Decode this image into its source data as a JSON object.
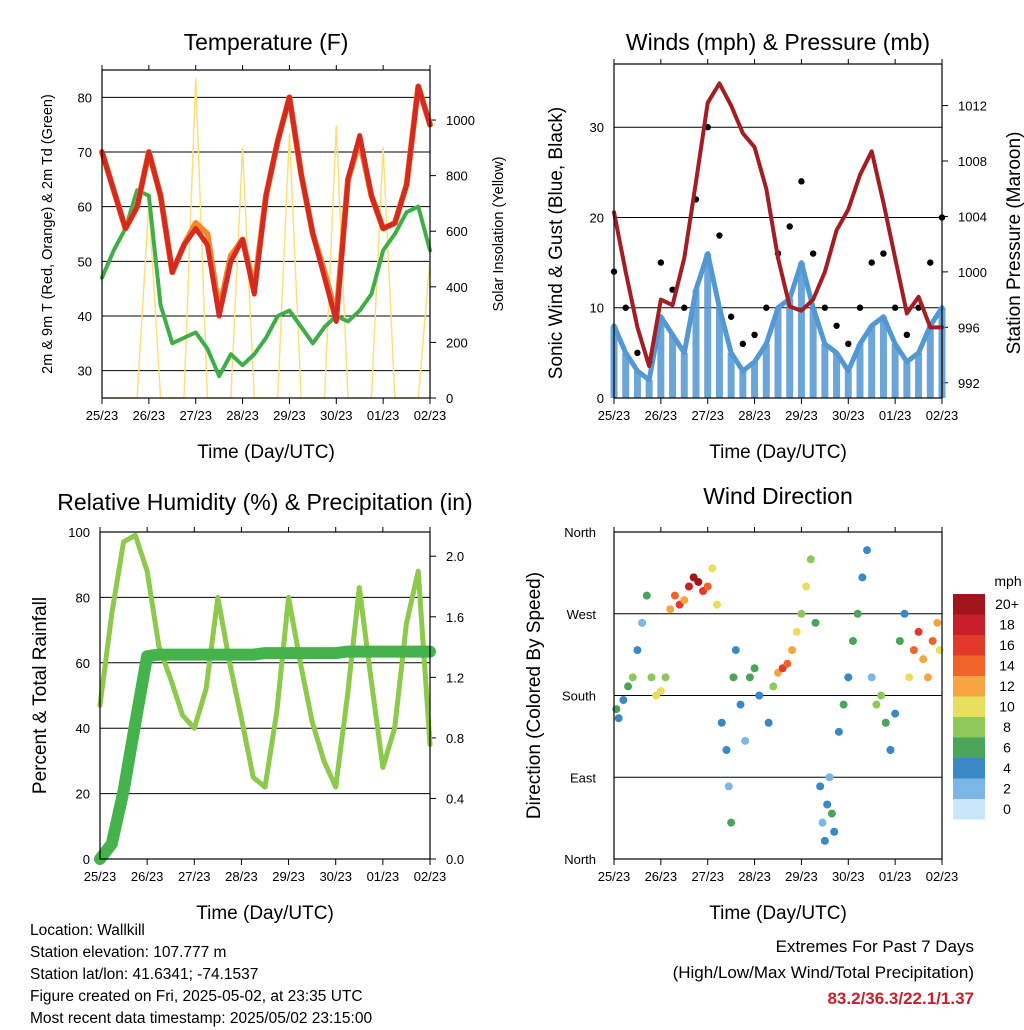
{
  "x_ticks": [
    "25/23",
    "26/23",
    "27/23",
    "28/23",
    "29/23",
    "30/23",
    "01/23",
    "02/23"
  ],
  "colors": {
    "temp2m": "#d42a22",
    "temp9m": "#f5862a",
    "dewpoint": "#3fae48",
    "solar": "#fbe07a",
    "wind": "#5397d3",
    "gust": "#000000",
    "pressure": "#a31e23",
    "rh": "#8dc94b",
    "precip": "#45b34c",
    "extremes": "#c8202a"
  },
  "chart_data": [
    {
      "type": "line",
      "title": "Temperature (F)",
      "xlabel": "Time (Day/UTC)",
      "ylabel": "2m & 9m T (Red, Orange) & 2m Td (Green)",
      "y2label": "Solar Insolation (Yellow)",
      "ylim": [
        25,
        85
      ],
      "y2lim": [
        0,
        1180
      ],
      "yticks": [
        30,
        40,
        50,
        60,
        70,
        80
      ],
      "y2ticks": [
        0,
        200,
        400,
        600,
        800,
        1000
      ],
      "grid": true,
      "x": [
        0,
        0.25,
        0.5,
        0.75,
        1.0,
        1.25,
        1.5,
        1.75,
        2.0,
        2.25,
        2.5,
        2.75,
        3.0,
        3.25,
        3.5,
        3.75,
        4.0,
        4.25,
        4.5,
        4.75,
        5.0,
        5.25,
        5.5,
        5.75,
        6.0,
        6.25,
        6.5,
        6.75,
        7.0
      ],
      "series": [
        {
          "name": "2m T",
          "values": [
            70,
            63,
            56,
            60,
            70,
            62,
            48,
            53,
            56,
            53,
            40,
            50,
            54,
            44,
            62,
            72,
            80,
            66,
            55,
            47,
            39,
            65,
            73,
            62,
            56,
            57,
            64,
            82,
            75
          ]
        },
        {
          "name": "9m T",
          "values": [
            70,
            63,
            56,
            60,
            70,
            62,
            48,
            53,
            57,
            55,
            41,
            51,
            54,
            45,
            62,
            72,
            80,
            66,
            55,
            48,
            40,
            65,
            72,
            62,
            56,
            57,
            64,
            82,
            75
          ]
        },
        {
          "name": "2m Td",
          "values": [
            47,
            52,
            56,
            63,
            62,
            42,
            35,
            36,
            37,
            34,
            29,
            33,
            31,
            33,
            36,
            40,
            41,
            38,
            35,
            38,
            40,
            39,
            41,
            44,
            52,
            55,
            59,
            60,
            52
          ]
        },
        {
          "name": "Solar",
          "values": [
            0,
            0,
            0,
            0,
            700,
            0,
            0,
            0,
            1150,
            0,
            0,
            0,
            900,
            0,
            0,
            0,
            950,
            0,
            0,
            0,
            980,
            0,
            0,
            0,
            900,
            0,
            0,
            0,
            500
          ]
        }
      ]
    },
    {
      "type": "line",
      "title": "Winds (mph) & Pressure (mb)",
      "xlabel": "Time (Day/UTC)",
      "ylabel": "Sonic Wind & Gust (Blue, Black)",
      "y2label": "Station Pressure (Maroon)",
      "ylim": [
        0,
        37
      ],
      "y2lim": [
        990.9,
        1015.0
      ],
      "yticks": [
        0,
        10,
        20,
        30
      ],
      "y2ticks": [
        992,
        996,
        1000,
        1004,
        1008,
        1012
      ],
      "grid": true,
      "x": [
        0,
        0.25,
        0.5,
        0.75,
        1.0,
        1.25,
        1.5,
        1.75,
        2.0,
        2.25,
        2.5,
        2.75,
        3.0,
        3.25,
        3.5,
        3.75,
        4.0,
        4.25,
        4.5,
        4.75,
        5.0,
        5.25,
        5.5,
        5.75,
        6.0,
        6.25,
        6.5,
        6.75,
        7.0
      ],
      "series": [
        {
          "name": "Wind",
          "values": [
            8,
            5,
            3,
            2,
            9,
            7,
            5,
            12,
            16,
            10,
            5,
            3,
            4,
            6,
            10,
            11,
            15,
            10,
            6,
            5,
            3,
            6,
            8,
            9,
            6,
            4,
            5,
            8,
            10
          ]
        },
        {
          "name": "Gust",
          "values": [
            14,
            10,
            5,
            4,
            15,
            12,
            10,
            22,
            30,
            18,
            9,
            6,
            7,
            10,
            16,
            19,
            24,
            16,
            10,
            8,
            6,
            10,
            15,
            16,
            10,
            7,
            10,
            15,
            20
          ]
        },
        {
          "name": "Pressure",
          "values": [
            1004.3,
            1000,
            996,
            993.2,
            998,
            997.6,
            1001,
            1006.5,
            1012.2,
            1013.6,
            1012,
            1010,
            1009,
            1006,
            1001,
            997.5,
            997.2,
            998,
            1000,
            1003,
            1004.5,
            1007,
            1008.7,
            1005,
            1001,
            997,
            998.2,
            996,
            996
          ]
        }
      ]
    },
    {
      "type": "line",
      "title": "Relative Humidity (%) & Precipitation (in)",
      "xlabel": "Time (Day/UTC)",
      "ylabel": "Percent & Total Rainfall",
      "ylim": [
        0,
        100
      ],
      "y2lim": [
        0,
        2.16
      ],
      "yticks": [
        0,
        20,
        40,
        60,
        80,
        100
      ],
      "y2ticks": [
        0.0,
        0.4,
        0.8,
        1.2,
        1.6,
        2.0
      ],
      "grid": true,
      "x": [
        0,
        0.25,
        0.5,
        0.75,
        1.0,
        1.25,
        1.5,
        1.75,
        2.0,
        2.25,
        2.5,
        2.75,
        3.0,
        3.25,
        3.5,
        3.75,
        4.0,
        4.25,
        4.5,
        4.75,
        5.0,
        5.25,
        5.5,
        5.75,
        6.0,
        6.25,
        6.5,
        6.75,
        7.0
      ],
      "series": [
        {
          "name": "RH",
          "values": [
            47,
            75,
            97,
            99,
            88,
            65,
            55,
            44,
            40,
            52,
            80,
            60,
            43,
            25,
            22,
            45,
            80,
            60,
            42,
            30,
            22,
            50,
            83,
            55,
            28,
            40,
            72,
            88,
            35
          ]
        },
        {
          "name": "Precip",
          "values": [
            0,
            0.1,
            0.45,
            0.9,
            1.34,
            1.35,
            1.35,
            1.35,
            1.35,
            1.35,
            1.35,
            1.35,
            1.35,
            1.35,
            1.36,
            1.36,
            1.36,
            1.36,
            1.36,
            1.36,
            1.36,
            1.37,
            1.37,
            1.37,
            1.37,
            1.37,
            1.37,
            1.37,
            1.37
          ]
        }
      ]
    },
    {
      "type": "scatter",
      "title": "Wind Direction",
      "xlabel": "Time (Day/UTC)",
      "ylabel": "Direction (Colored By Speed)",
      "yticks": [
        "North",
        "East",
        "South",
        "West",
        "North"
      ],
      "ylim": [
        0,
        360
      ],
      "legend_title": "mph",
      "legend_labels": [
        "20+",
        "18",
        "16",
        "14",
        "12",
        "10",
        "8",
        "6",
        "4",
        "2",
        "0"
      ],
      "legend_colors": [
        "#a0141c",
        "#c8202a",
        "#e13a2a",
        "#f0642c",
        "#f7a443",
        "#e8df5e",
        "#8ec85a",
        "#4aa55a",
        "#3a88c6",
        "#7ab7e6",
        "#c8e8fa"
      ],
      "points": [
        [
          0.05,
          165,
          6
        ],
        [
          0.1,
          155,
          4
        ],
        [
          0.2,
          175,
          3
        ],
        [
          0.3,
          190,
          5
        ],
        [
          0.4,
          200,
          8
        ],
        [
          0.5,
          230,
          4
        ],
        [
          0.6,
          260,
          2
        ],
        [
          0.7,
          290,
          5
        ],
        [
          0.8,
          200,
          7
        ],
        [
          0.9,
          180,
          9
        ],
        [
          1.0,
          185,
          10
        ],
        [
          1.1,
          200,
          8
        ],
        [
          1.2,
          275,
          11
        ],
        [
          1.3,
          290,
          13
        ],
        [
          1.4,
          280,
          15
        ],
        [
          1.5,
          285,
          12
        ],
        [
          1.6,
          300,
          17
        ],
        [
          1.7,
          310,
          19
        ],
        [
          1.8,
          305,
          20
        ],
        [
          1.9,
          295,
          16
        ],
        [
          2.0,
          300,
          14
        ],
        [
          2.1,
          320,
          10
        ],
        [
          2.2,
          280,
          9
        ],
        [
          2.3,
          150,
          3
        ],
        [
          2.4,
          120,
          4
        ],
        [
          2.45,
          80,
          2
        ],
        [
          2.5,
          40,
          6
        ],
        [
          2.55,
          200,
          5
        ],
        [
          2.6,
          230,
          3
        ],
        [
          2.7,
          170,
          4
        ],
        [
          2.8,
          130,
          2
        ],
        [
          2.9,
          200,
          5
        ],
        [
          3.0,
          210,
          6
        ],
        [
          3.1,
          180,
          4
        ],
        [
          3.3,
          150,
          3
        ],
        [
          3.4,
          190,
          7
        ],
        [
          3.5,
          205,
          12
        ],
        [
          3.6,
          210,
          15
        ],
        [
          3.7,
          215,
          14
        ],
        [
          3.8,
          230,
          12
        ],
        [
          3.9,
          250,
          9
        ],
        [
          4.0,
          270,
          8
        ],
        [
          4.1,
          300,
          10
        ],
        [
          4.2,
          330,
          7
        ],
        [
          4.3,
          260,
          5
        ],
        [
          4.4,
          80,
          3
        ],
        [
          4.45,
          40,
          2
        ],
        [
          4.5,
          20,
          4
        ],
        [
          4.55,
          60,
          3
        ],
        [
          4.6,
          90,
          2
        ],
        [
          4.65,
          50,
          5
        ],
        [
          4.7,
          30,
          3
        ],
        [
          4.8,
          140,
          4
        ],
        [
          4.9,
          170,
          6
        ],
        [
          5.0,
          200,
          3
        ],
        [
          5.1,
          240,
          5
        ],
        [
          5.2,
          270,
          6
        ],
        [
          5.3,
          310,
          4
        ],
        [
          5.4,
          340,
          3
        ],
        [
          5.5,
          200,
          2
        ],
        [
          5.6,
          170,
          7
        ],
        [
          5.7,
          180,
          8
        ],
        [
          5.8,
          150,
          5
        ],
        [
          5.9,
          120,
          4
        ],
        [
          6.0,
          160,
          3
        ],
        [
          6.1,
          240,
          5
        ],
        [
          6.2,
          270,
          4
        ],
        [
          6.3,
          200,
          10
        ],
        [
          6.4,
          230,
          13
        ],
        [
          6.5,
          250,
          15
        ],
        [
          6.6,
          220,
          12
        ],
        [
          6.7,
          200,
          11
        ],
        [
          6.8,
          240,
          14
        ],
        [
          6.9,
          260,
          12
        ],
        [
          6.95,
          230,
          9
        ]
      ]
    }
  ],
  "info": {
    "location": "Location: Wallkill",
    "elevation": "Station elevation: 107.777 m",
    "latlon": "Station lat/lon: 41.6341; -74.1537",
    "created": "Figure created on Fri, 2025-05-02, at 23:35 UTC",
    "recent": "Most recent data timestamp: 2025/05/02 23:15:00"
  },
  "extremes": {
    "title": "Extremes For Past 7 Days",
    "subtitle": "(High/Low/Max Wind/Total Precipitation)",
    "values": "83.2/36.3/22.1/1.37"
  }
}
